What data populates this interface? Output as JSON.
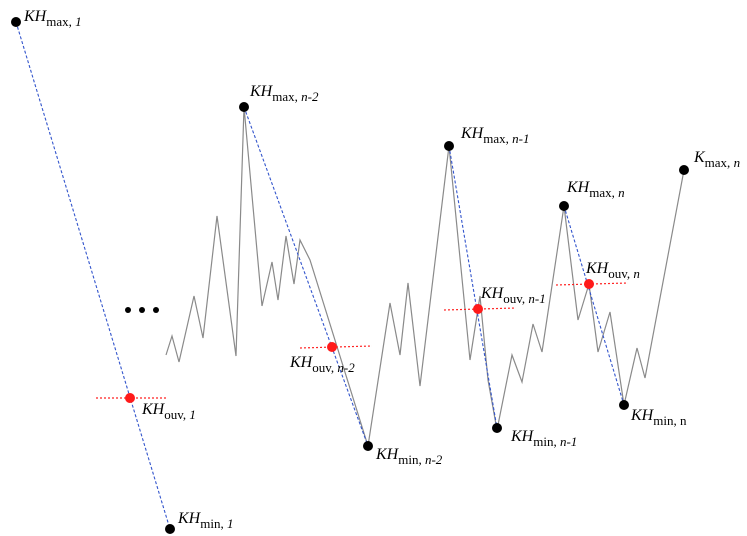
{
  "colors": {
    "trace": "#8a8a8a",
    "envelope": "#3355cc",
    "open_line": "#ff2222",
    "extremum_dot": "#000000",
    "open_dot": "#ff1a1a"
  },
  "ellipsis": "• • •",
  "labels": [
    {
      "id": "kh-max-1",
      "main": "KH",
      "sub": "max, ",
      "idx": "1"
    },
    {
      "id": "kh-max-n-2",
      "main": "KH",
      "sub": "max, ",
      "idx": "n-2"
    },
    {
      "id": "kh-max-n-1",
      "main": "KH",
      "sub": "max, ",
      "idx": "n-1"
    },
    {
      "id": "kh-max-n",
      "main": "KH",
      "sub": "max, ",
      "idx": "n"
    },
    {
      "id": "k-max-last",
      "main": "K",
      "sub": "max, ",
      "idx": "n"
    },
    {
      "id": "kh-ouv-1",
      "main": "KH",
      "sub": "ouv, ",
      "idx": "1"
    },
    {
      "id": "kh-ouv-n-2",
      "main": "KH",
      "sub": "ouv, ",
      "idx": "n-2"
    },
    {
      "id": "kh-ouv-n-1",
      "main": "KH",
      "sub": "ouv, ",
      "idx": "n-1"
    },
    {
      "id": "kh-ouv-n",
      "main": "KH",
      "sub": "ouv, ",
      "idx": "n"
    },
    {
      "id": "kh-min-1",
      "main": "KH",
      "sub": "min, ",
      "idx": "1"
    },
    {
      "id": "kh-min-n-2",
      "main": "KH",
      "sub": "min, ",
      "idx": "n-2"
    },
    {
      "id": "kh-min-n-1",
      "main": "KH",
      "sub": "min, ",
      "idx": "n-1"
    },
    {
      "id": "kh-min-n",
      "main": "KH",
      "sub": "min, n",
      "idx": ""
    }
  ]
}
